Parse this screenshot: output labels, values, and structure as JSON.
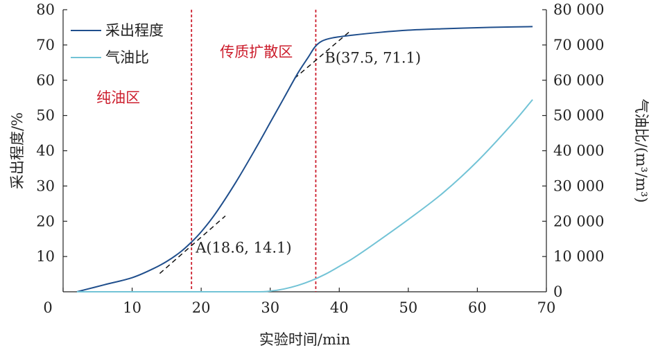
{
  "chart_data": {
    "type": "line",
    "xlabel": "实验时间/min",
    "ylabel": "采出程度/%",
    "y2label": "气油比/(m³/m³)",
    "xlim": [
      0,
      70
    ],
    "ylim": [
      0,
      80
    ],
    "y2lim": [
      0,
      80000
    ],
    "x_ticks": [
      "0",
      "10",
      "20",
      "30",
      "40",
      "50",
      "60",
      "70"
    ],
    "y_ticks": [
      "0",
      "10",
      "20",
      "30",
      "40",
      "50",
      "60",
      "70",
      "80"
    ],
    "y2_ticks": [
      "0",
      "10 000",
      "20 000",
      "30 000",
      "40 000",
      "50 000",
      "60 000",
      "70 000",
      "80 000"
    ],
    "legend_position": "top-left",
    "grid": false,
    "series": [
      {
        "name": "采出程度",
        "axis": "left",
        "color": "#1f4e8c",
        "x": [
          2,
          6,
          10,
          13,
          15,
          17,
          18.6,
          20,
          22,
          25,
          28,
          30,
          32,
          34,
          35.5,
          36.5,
          37.5,
          39,
          42,
          46,
          50,
          55,
          60,
          65,
          68
        ],
        "y": [
          0,
          2,
          4,
          6.5,
          8.6,
          11.3,
          14.1,
          17,
          22,
          31,
          41,
          48,
          55,
          62,
          66.5,
          69.5,
          71.1,
          72,
          72.8,
          73.6,
          74.2,
          74.6,
          74.9,
          75.1,
          75.2
        ]
      },
      {
        "name": "气油比",
        "axis": "right",
        "color": "#72c3d6",
        "x": [
          2,
          10,
          20,
          28,
          30,
          32,
          34,
          36,
          38,
          40,
          42,
          45,
          50,
          55,
          60,
          65,
          68
        ],
        "y": [
          0,
          0,
          0,
          0,
          200,
          800,
          1800,
          3200,
          5000,
          7200,
          9500,
          13500,
          20500,
          28000,
          37000,
          47500,
          54500
        ]
      }
    ],
    "vlines": [
      {
        "x": 18.6,
        "color": "#cc1e2d"
      },
      {
        "x": 36.6,
        "color": "#cc1e2d"
      }
    ],
    "zones": [
      {
        "label": "纯油区",
        "x": 8,
        "y": 55
      },
      {
        "label": "传质扩散区",
        "x": 28,
        "y": 68
      }
    ],
    "points": [
      {
        "label": "A(18.6, 14.1)",
        "x": 18.6,
        "y": 14.1
      },
      {
        "label": "B(37.5, 71.1)",
        "x": 37.5,
        "y": 71.1
      }
    ],
    "tangents": [
      {
        "x1": 14,
        "y1": 5.2,
        "x2": 23.5,
        "y2": 21.5
      },
      {
        "x1": 33.5,
        "y1": 60.5,
        "x2": 41.5,
        "y2": 73.8
      }
    ]
  }
}
